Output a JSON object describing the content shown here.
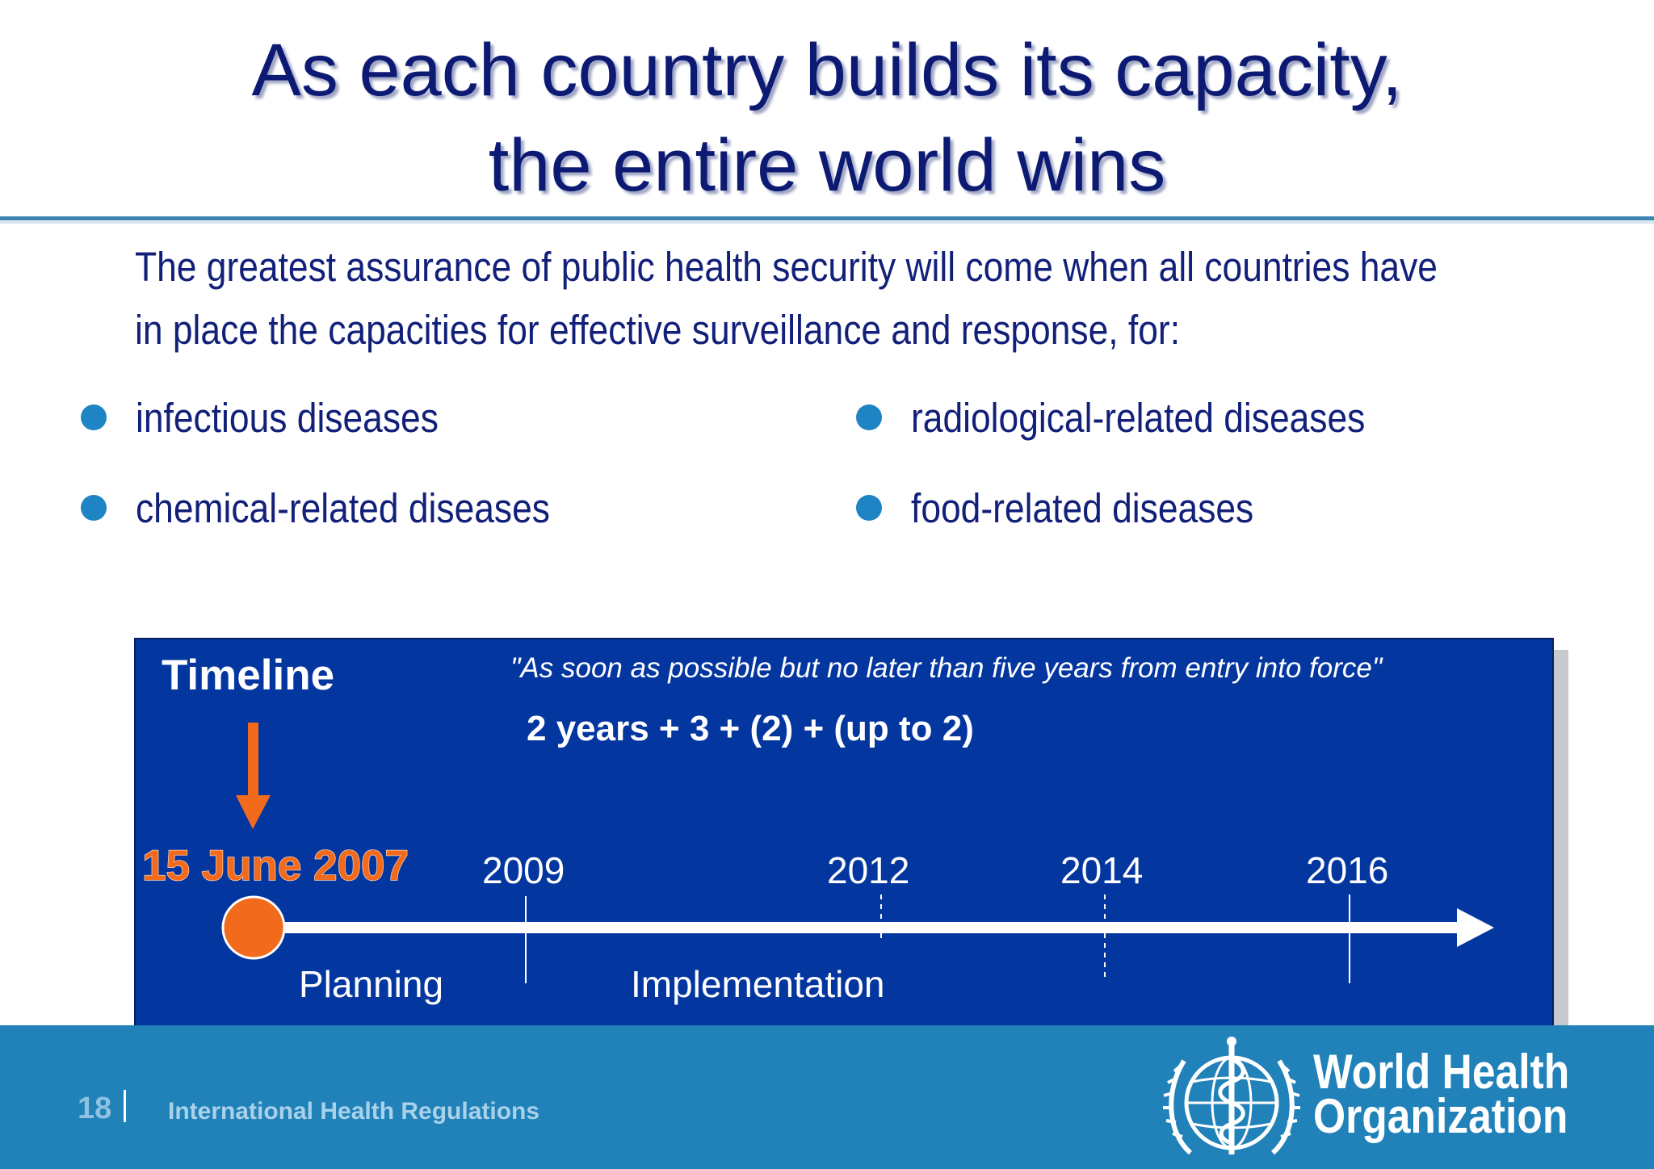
{
  "slide": {
    "title_line1": "As each country builds its capacity,",
    "title_line2": "the entire world wins",
    "intro_line1": "The greatest assurance of public health security will come when all countries have",
    "intro_line2": "in place the capacities for effective surveillance and response, for:",
    "bullets": [
      "infectious diseases",
      "chemical-related diseases",
      "radiological-related diseases",
      "food-related diseases"
    ]
  },
  "timeline": {
    "heading": "Timeline",
    "quote": "\"As soon as possible but no later than five years from entry into force\"",
    "formula": "2 years + 3 + (2) + (up to 2)",
    "start_date": "15 June 2007",
    "years": [
      "2009",
      "2012",
      "2014",
      "2016"
    ],
    "phase_planning": "Planning",
    "phase_implementation": "Implementation",
    "colors": {
      "background": "#0436a0",
      "highlight": "#f26a1b",
      "axis": "#ffffff"
    }
  },
  "footer": {
    "page_number": "18",
    "subtitle": "International Health Regulations",
    "org_line1": "World Health",
    "org_line2": "Organization",
    "logo_icon": "who-emblem-icon"
  }
}
